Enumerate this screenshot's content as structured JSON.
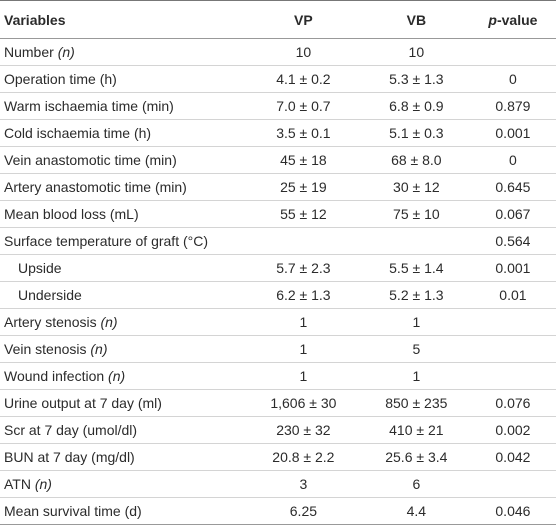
{
  "table": {
    "header": [
      [
        {
          "text": "Variables"
        }
      ],
      [
        {
          "text": "VP"
        }
      ],
      [
        {
          "text": "VB"
        }
      ],
      [
        {
          "text": "p",
          "italic": true
        },
        {
          "text": "-value"
        }
      ]
    ],
    "rows": [
      {
        "label": [
          {
            "text": "Number "
          },
          {
            "text": "(n)",
            "italic": true
          }
        ],
        "cells": [
          "10",
          "10",
          null
        ]
      },
      {
        "label": [
          {
            "text": "Operation time (h)"
          }
        ],
        "cells": [
          "4.1 ± 0.2",
          "5.3 ± 1.3",
          "0"
        ]
      },
      {
        "label": [
          {
            "text": "Warm ischaemia time (min)"
          }
        ],
        "cells": [
          "7.0 ± 0.7",
          "6.8 ± 0.9",
          "0.879"
        ]
      },
      {
        "label": [
          {
            "text": "Cold ischaemia time (h)"
          }
        ],
        "cells": [
          "3.5 ± 0.1",
          "5.1 ± 0.3",
          "0.001"
        ]
      },
      {
        "label": [
          {
            "text": "Vein anastomotic time (min)"
          }
        ],
        "cells": [
          "45 ± 18",
          "68 ± 8.0",
          "0"
        ]
      },
      {
        "label": [
          {
            "text": "Artery anastomotic time (min)"
          }
        ],
        "cells": [
          "25 ± 19",
          "30 ± 12",
          "0.645"
        ]
      },
      {
        "label": [
          {
            "text": "Mean blood loss (mL)"
          }
        ],
        "cells": [
          "55 ± 12",
          "75 ± 10",
          "0.067"
        ]
      },
      {
        "label": [
          {
            "text": "Surface temperature of graft (°C)"
          }
        ],
        "cells": [
          null,
          null,
          "0.564"
        ],
        "subrows": [
          {
            "label": [
              {
                "text": "Upside"
              }
            ],
            "cells": [
              "5.7 ± 2.3",
              "5.5 ± 1.4",
              "0.001"
            ]
          },
          {
            "label": [
              {
                "text": "Underside"
              }
            ],
            "cells": [
              "6.2 ± 1.3",
              "5.2 ± 1.3",
              "0.01"
            ]
          }
        ]
      },
      {
        "label": [
          {
            "text": "Artery stenosis "
          },
          {
            "text": "(n)",
            "italic": true
          }
        ],
        "cells": [
          "1",
          "1",
          null
        ]
      },
      {
        "label": [
          {
            "text": "Vein stenosis "
          },
          {
            "text": "(n)",
            "italic": true
          }
        ],
        "cells": [
          "1",
          "5",
          null
        ]
      },
      {
        "label": [
          {
            "text": "Wound infection "
          },
          {
            "text": "(n)",
            "italic": true
          }
        ],
        "cells": [
          "1",
          "1",
          null
        ]
      },
      {
        "label": [
          {
            "text": "Urine output at 7 day (ml)"
          }
        ],
        "cells": [
          "1,606 ± 30",
          "850 ± 235",
          "0.076"
        ]
      },
      {
        "label": [
          {
            "text": "Scr at 7 day (umol/dl)"
          }
        ],
        "cells": [
          "230 ± 32",
          "410 ± 21",
          "0.002"
        ]
      },
      {
        "label": [
          {
            "text": "BUN at 7 day (mg/dl)"
          }
        ],
        "cells": [
          "20.8 ± 2.2",
          "25.6 ± 3.4",
          "0.042"
        ]
      },
      {
        "label": [
          {
            "text": "ATN "
          },
          {
            "text": "(n)",
            "italic": true
          }
        ],
        "cells": [
          "3",
          "6",
          null
        ]
      },
      {
        "label": [
          {
            "text": "Mean survival time (d)"
          }
        ],
        "cells": [
          "6.25",
          "4.4",
          "0.046"
        ]
      }
    ]
  }
}
